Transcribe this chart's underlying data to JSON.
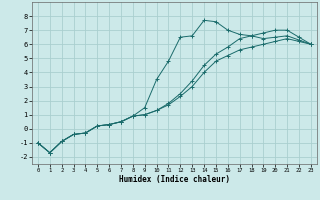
{
  "xlabel": "Humidex (Indice chaleur)",
  "ylabel": "",
  "bg_color": "#cce9e9",
  "grid_color": "#aacfcf",
  "line_color": "#1a6b6b",
  "xlim": [
    -0.5,
    23.5
  ],
  "ylim": [
    -2.5,
    9.0
  ],
  "yticks": [
    -2,
    -1,
    0,
    1,
    2,
    3,
    4,
    5,
    6,
    7,
    8
  ],
  "xticks": [
    0,
    1,
    2,
    3,
    4,
    5,
    6,
    7,
    8,
    9,
    10,
    11,
    12,
    13,
    14,
    15,
    16,
    17,
    18,
    19,
    20,
    21,
    22,
    23
  ],
  "line1_x": [
    0,
    1,
    2,
    3,
    4,
    5,
    6,
    7,
    8,
    9,
    10,
    11,
    12,
    13,
    14,
    15,
    16,
    17,
    18,
    19,
    20,
    21,
    22,
    23
  ],
  "line1_y": [
    -1.0,
    -1.7,
    -0.9,
    -0.4,
    -0.3,
    0.2,
    0.3,
    0.5,
    0.9,
    1.5,
    3.5,
    4.8,
    6.5,
    6.6,
    7.7,
    7.6,
    7.0,
    6.7,
    6.6,
    6.4,
    6.5,
    6.6,
    6.3,
    6.0
  ],
  "line2_x": [
    0,
    1,
    2,
    3,
    4,
    5,
    6,
    7,
    8,
    9,
    10,
    11,
    12,
    13,
    14,
    15,
    16,
    17,
    18,
    19,
    20,
    21,
    22,
    23
  ],
  "line2_y": [
    -1.0,
    -1.7,
    -0.9,
    -0.4,
    -0.3,
    0.2,
    0.3,
    0.5,
    0.9,
    1.0,
    1.3,
    1.7,
    2.3,
    3.0,
    4.0,
    4.8,
    5.2,
    5.6,
    5.8,
    6.0,
    6.2,
    6.4,
    6.2,
    6.0
  ],
  "line3_x": [
    0,
    1,
    2,
    3,
    4,
    5,
    6,
    7,
    8,
    9,
    10,
    11,
    12,
    13,
    14,
    15,
    16,
    17,
    18,
    19,
    20,
    21,
    22,
    23
  ],
  "line3_y": [
    -1.0,
    -1.7,
    -0.9,
    -0.4,
    -0.3,
    0.2,
    0.3,
    0.5,
    0.9,
    1.0,
    1.3,
    1.8,
    2.5,
    3.4,
    4.5,
    5.3,
    5.8,
    6.4,
    6.6,
    6.8,
    7.0,
    7.0,
    6.5,
    6.0
  ]
}
